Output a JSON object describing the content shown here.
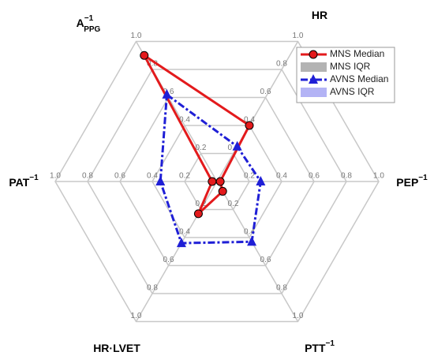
{
  "chart_data": {
    "type": "radar",
    "categories": [
      {
        "base": "A",
        "sup": "−1",
        "sub": "PPG"
      },
      {
        "base": "HR"
      },
      {
        "base": "PEP",
        "sup": "−1"
      },
      {
        "base": "PTT",
        "sup": "−1"
      },
      {
        "base": "HR·LVET"
      },
      {
        "base": "PAT",
        "sup": "−1"
      }
    ],
    "rlim": [
      0,
      1
    ],
    "rticks": [
      0.2,
      0.4,
      0.6,
      0.8,
      {
        "value": 1,
        "label": "1.0"
      }
    ],
    "grid": true,
    "legend": "upper right",
    "series": [
      {
        "name": "MNS Median",
        "color": "#e31a1c",
        "marker": "circle",
        "values": [
          0.9,
          0.4,
          0.02,
          0.07,
          0.23,
          0.03
        ]
      },
      {
        "name": "AVNS Median",
        "color": "#1f1fd6",
        "marker": "triangle",
        "values": [
          0.62,
          0.25,
          0.27,
          0.43,
          0.44,
          0.35
        ]
      }
    ],
    "band_legend": [
      {
        "name": "MNS IQR",
        "color": "#b3b3b3"
      },
      {
        "name": "AVNS IQR",
        "color": "#b3b3f5"
      }
    ]
  }
}
